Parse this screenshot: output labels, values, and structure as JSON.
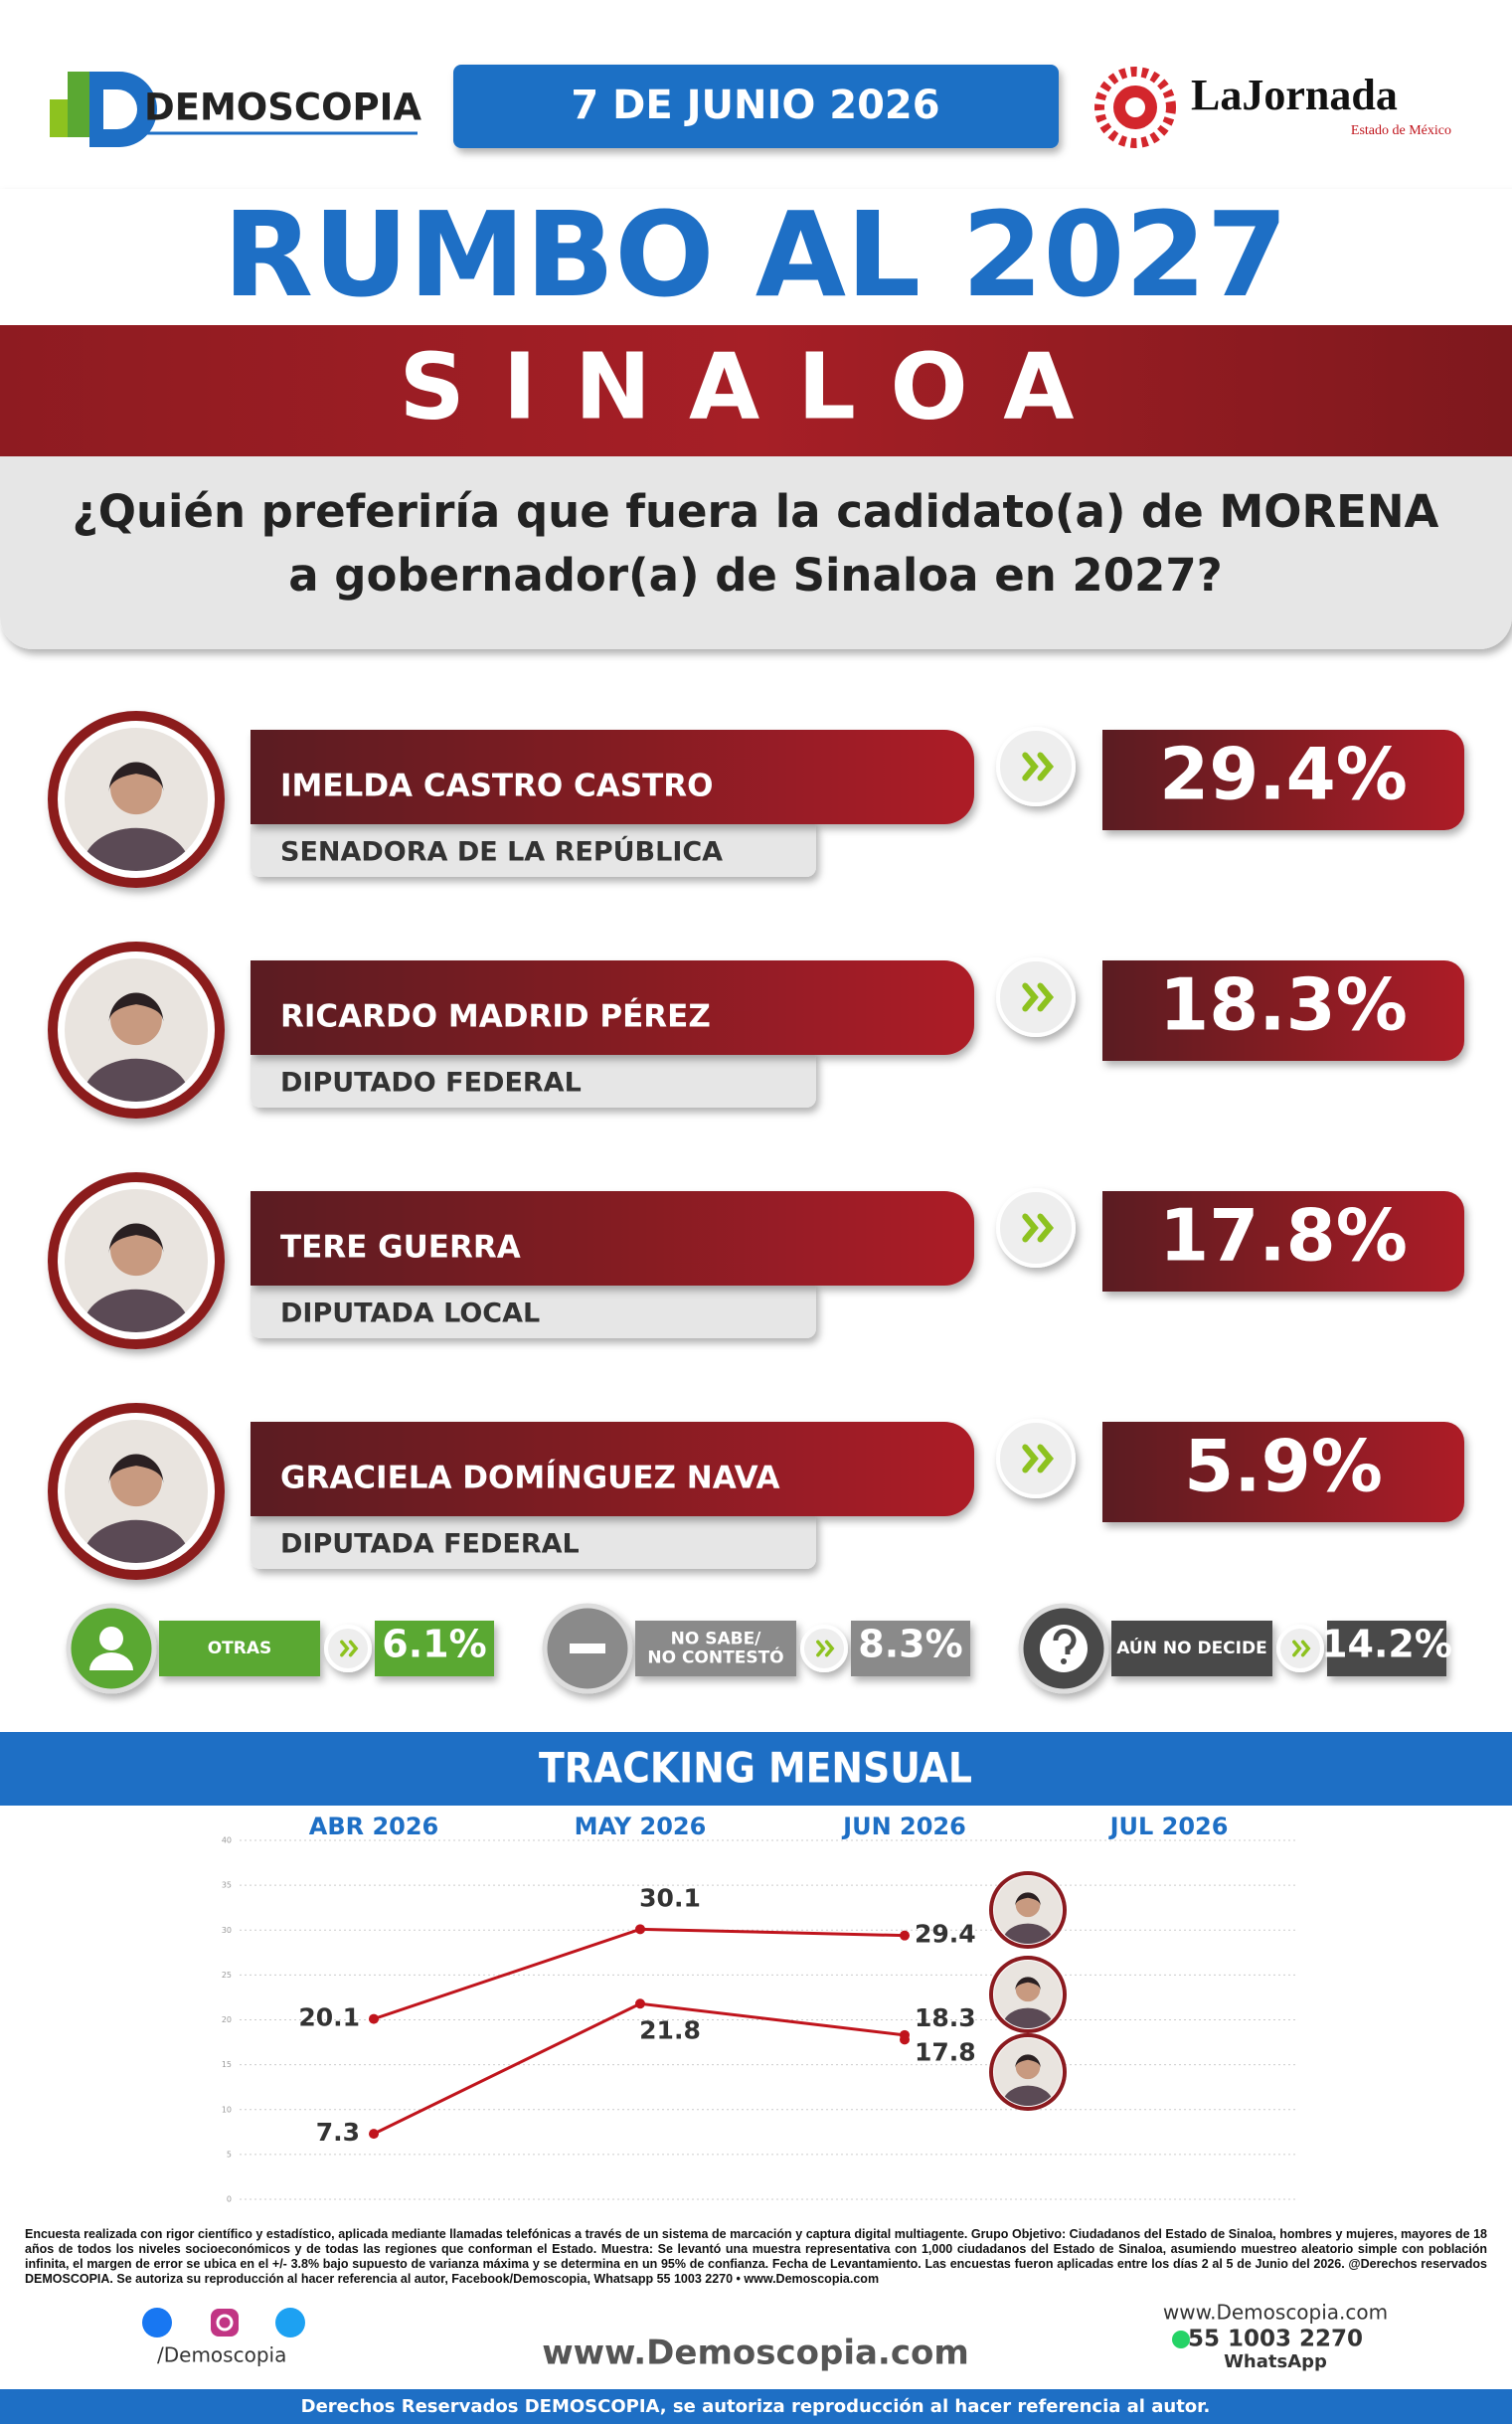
{
  "header": {
    "logo": "DEMOSCOPIA",
    "date": "7 DE JUNIO 2026",
    "partner": "LaJornada",
    "partner_sub": "Estado de México"
  },
  "title": "RUMBO AL 2027",
  "subtitle": "SINALOA",
  "question": [
    "¿Quién preferiría que fuera la cadidato(a) de MORENA",
    "a gobernador(a) de Sinaloa en 2027?"
  ],
  "candidates": [
    {
      "name": "IMELDA CASTRO CASTRO",
      "role": "SENADORA DE LA REPÚBLICA",
      "percent": "29.4%"
    },
    {
      "name": "RICARDO MADRID PÉREZ",
      "role": "DIPUTADO FEDERAL",
      "percent": "18.3%"
    },
    {
      "name": "TERE GUERRA",
      "role": "DIPUTADA LOCAL",
      "percent": "17.8%"
    },
    {
      "name": "GRACIELA DOMÍNGUEZ NAVA",
      "role": "DIPUTADA FEDERAL",
      "percent": "5.9%"
    }
  ],
  "others": [
    {
      "lines": [
        "OTRAS"
      ],
      "percent": "6.1%",
      "icon": "?"
    },
    {
      "lines": [
        "NO SABE/",
        "NO CONTESTÓ"
      ],
      "percent": "8.3%"
    },
    {
      "lines": [
        "AÚN NO DECIDE"
      ],
      "percent": "14.2%",
      "icon": "?"
    }
  ],
  "chart_data": {
    "type": "line",
    "title": "TRACKING MENSUAL",
    "categories": [
      "ABR 2026",
      "MAY 2026",
      "JUN 2026",
      "JUL 2026"
    ],
    "ylim": [
      0,
      40
    ],
    "yticks": [
      0,
      5,
      10,
      15,
      20,
      25,
      30,
      35,
      40
    ],
    "grid": true,
    "series": [
      {
        "color": "#c0141c",
        "values": [
          20.1,
          30.1,
          29.4,
          null
        ]
      },
      {
        "color": "#c0141c",
        "values": [
          7.3,
          21.8,
          18.3,
          null
        ]
      },
      {
        "color": "#c0141c",
        "values": [
          null,
          null,
          17.8,
          null
        ]
      }
    ]
  },
  "footnote": "Encuesta realizada con rigor científico y estadístico, aplicada mediante llamadas telefónicas a través de un sistema de marcación y captura digital multiagente. Grupo Objetivo: Ciudadanos del Estado de Sinaloa, hombres y mujeres, mayores de 18 años de todos los niveles socioeconómicos y de todas las regiones que conforman el Estado. Muestra: Se levantó una muestra representativa con 1,000 ciudadanos del Estado de Sinaloa, asumiendo muestreo aleatorio simple con población infinita, el margen de error se ubica en el +/- 3.8% bajo supuesto de varianza máxima y se determina en un 95% de confianza. Fecha de Levantamiento. Las encuestas fueron aplicadas entre los días 2 al 5 de Junio del 2026. @Derechos reservados DEMOSCOPIA. Se autoriza su reproducción al hacer referencia al autor, Facebook/Demoscopia, Whatsapp 55 1003 2270 • www.Demoscopia.com",
  "footer": {
    "social": "/Demoscopia",
    "website": "www.Demoscopia.com",
    "contact_web": "www.Demoscopia.com",
    "phone": "55 1003 2270",
    "whatsapp": "WhatsApp",
    "rights": "Derechos Reservados DEMOSCOPIA, se autoriza reproducción al hacer referencia al autor."
  }
}
